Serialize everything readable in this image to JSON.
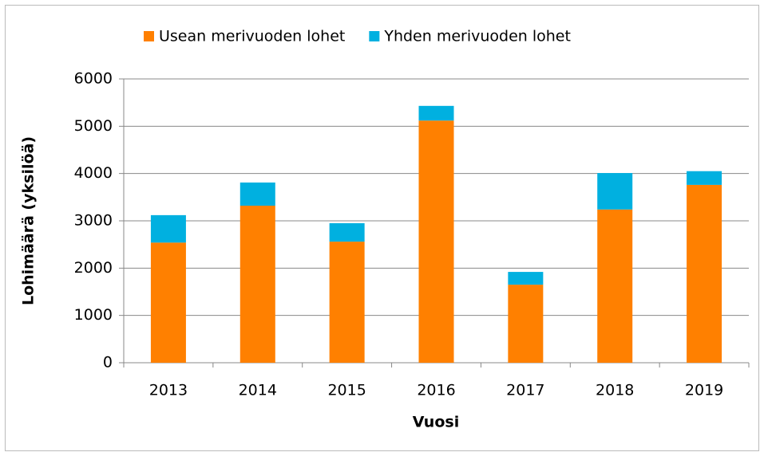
{
  "chart_data": {
    "type": "stacked_bar",
    "xlabel": "Vuosi",
    "ylabel": "Lohimäärä (yksilöä)",
    "categories": [
      "2013",
      "2014",
      "2015",
      "2016",
      "2017",
      "2018",
      "2019"
    ],
    "series": [
      {
        "name": "Usean merivuoden lohet",
        "color": "#ff8000",
        "values": [
          2540,
          3320,
          2560,
          5120,
          1650,
          3240,
          3760
        ]
      },
      {
        "name": "Yhden merivuoden lohet",
        "color": "#00b0e0",
        "values": [
          580,
          490,
          390,
          310,
          270,
          770,
          290
        ]
      }
    ],
    "ylim": [
      0,
      6000
    ],
    "yticks": [
      0,
      1000,
      2000,
      3000,
      4000,
      5000,
      6000
    ],
    "grid": true,
    "legend": "top"
  }
}
